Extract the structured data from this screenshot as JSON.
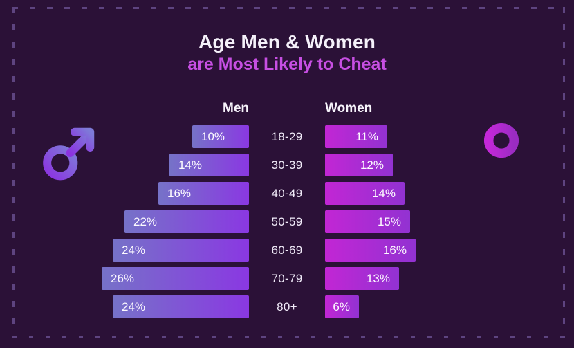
{
  "title": {
    "line1": "Age Men & Women",
    "line2": "are Most Likely to Cheat"
  },
  "chart_data": {
    "type": "bar",
    "orientation": "horizontal-butterfly",
    "title": "Age Men & Women are Most Likely to Cheat",
    "unit": "%",
    "categories": [
      "18-29",
      "30-39",
      "40-49",
      "50-59",
      "60-69",
      "70-79",
      "80+"
    ],
    "series": [
      {
        "name": "Men",
        "values": [
          10,
          14,
          16,
          22,
          24,
          26,
          24
        ]
      },
      {
        "name": "Women",
        "values": [
          11,
          12,
          14,
          15,
          16,
          13,
          6
        ]
      }
    ],
    "value_labels": "inside-bars",
    "category_labels": "center-column"
  },
  "icons": {
    "male": "male-gender-symbol",
    "female": "female-gender-symbol"
  },
  "colors": {
    "background": "#2b1137",
    "title_line1": "#f5f1fa",
    "title_line2": "#c74fe3",
    "men_bar_start": "#7672c8",
    "men_bar_end": "#8a38e2",
    "women_bar_start": "#c226d4",
    "women_bar_end": "#9232d2",
    "male_icon_start": "#8c33e0",
    "male_icon_end": "#7e7bd8",
    "female_icon_start": "#c428d8",
    "female_icon_end": "#9a2cc2",
    "border_dash": "#5e4480"
  }
}
